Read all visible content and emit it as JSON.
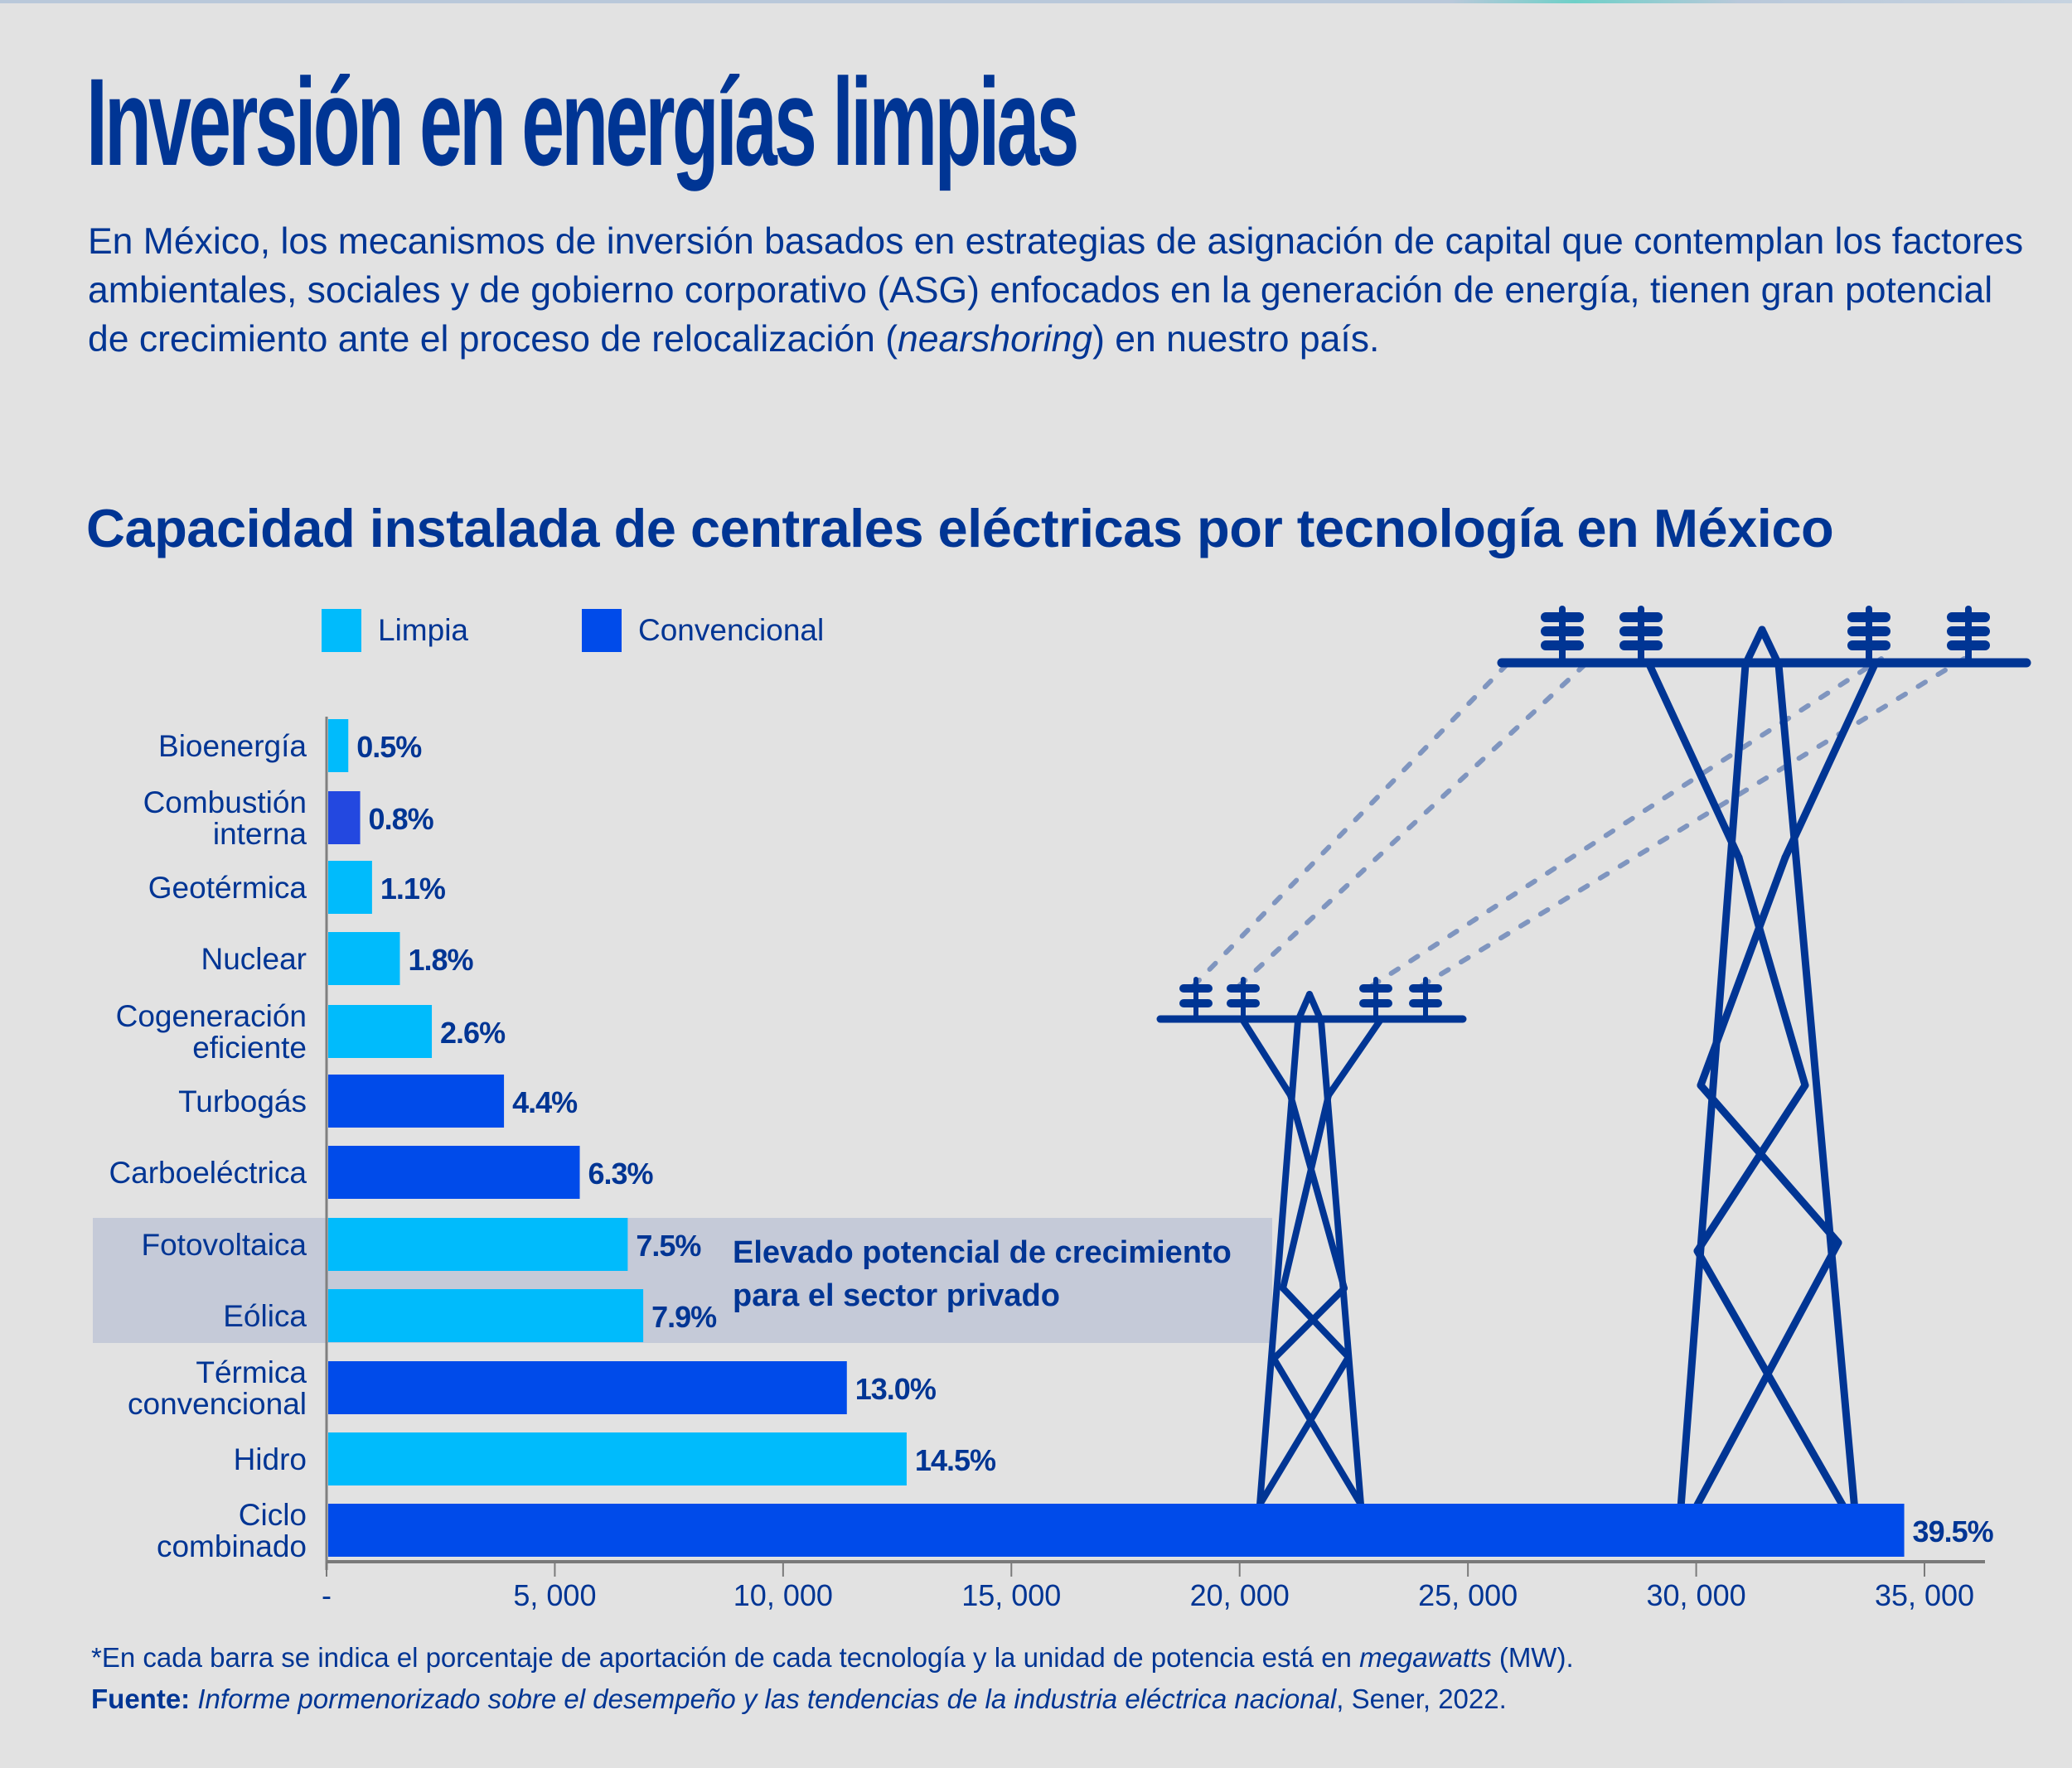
{
  "header": {
    "title": "Inversión en energías limpias",
    "intro_parts": [
      "En México, los mecanismos de inversión basados en estrategias de asignación de capital que contemplan los factores ambientales, sociales y de gobierno corporativo (ASG) enfocados en la generación de energía, tienen gran potencial de crecimiento ante el proceso de relocalización (",
      "nearshoring",
      ") en nuestro país."
    ]
  },
  "colors": {
    "limpia": "#00bbfc",
    "convencional": "#004bea",
    "combustion_interna": "#2348e0",
    "text": "#003594",
    "highlight": "#c5cad8",
    "tower": "#003594",
    "wire": "#7f95bf",
    "background": "#e2e2e2"
  },
  "chart_data": {
    "type": "bar",
    "orientation": "horizontal",
    "title": "Capacidad instalada de centrales eléctricas por tecnología en México",
    "xlabel": "",
    "ylabel": "",
    "unit": "MW",
    "xlim": [
      0,
      36500
    ],
    "x_ticks": [
      0,
      5000,
      10000,
      15000,
      20000,
      25000,
      30000,
      35000
    ],
    "x_tick_labels": [
      "-",
      "5, 000",
      "10, 000",
      "15, 000",
      "20, 000",
      "25, 000",
      "30, 000",
      "35, 000"
    ],
    "grid": false,
    "legend": [
      {
        "name": "Limpia",
        "color_key": "limpia"
      },
      {
        "name": "Convencional",
        "color_key": "convencional"
      }
    ],
    "legend_position": "top-left",
    "categories": [
      "Bioenergía",
      "Combustión interna",
      "Geotérmica",
      "Nuclear",
      "Cogeneración eficiente",
      "Turbogás",
      "Carboeléctrica",
      "Fotovoltaica",
      "Eólica",
      "Térmica convencional",
      "Hidro",
      "Ciclo combinado"
    ],
    "category_label_lines": [
      [
        "Bioenergía"
      ],
      [
        "Combustión",
        "interna"
      ],
      [
        "Geotérmica"
      ],
      [
        "Nuclear"
      ],
      [
        "Cogeneración",
        "eficiente"
      ],
      [
        "Turbogás"
      ],
      [
        "Carboeléctrica"
      ],
      [
        "Fotovoltaica"
      ],
      [
        "Eólica"
      ],
      [
        "Térmica",
        "convencional"
      ],
      [
        "Hidro"
      ],
      [
        "Ciclo",
        "combinado"
      ]
    ],
    "types": [
      "Limpia",
      "Convencional",
      "Limpia",
      "Limpia",
      "Limpia",
      "Convencional",
      "Convencional",
      "Limpia",
      "Limpia",
      "Convencional",
      "Limpia",
      "Convencional"
    ],
    "values": [
      440,
      700,
      960,
      1570,
      2270,
      3850,
      5510,
      6560,
      6900,
      11360,
      12670,
      34520
    ],
    "percent_labels": [
      "0.5%",
      "0.8%",
      "1.1%",
      "1.8%",
      "2.6%",
      "4.4%",
      "6.3%",
      "7.5%",
      "7.9%",
      "13.0%",
      "14.5%",
      "39.5%"
    ],
    "highlighted_categories": [
      "Fotovoltaica",
      "Eólica"
    ],
    "annotation": [
      "Elevado potencial de crecimiento",
      "para el sector privado"
    ]
  },
  "footer": {
    "note_parts": [
      "*En cada barra se indica el porcentaje de aportación de cada tecnología y la unidad de potencia está en ",
      "megawatts",
      " (MW)."
    ],
    "source_label": "Fuente:",
    "source_title": "Informe pormenorizado sobre el desempeño y las tendencias de la industria eléctrica nacional",
    "source_rest": ", Sener, 2022."
  }
}
